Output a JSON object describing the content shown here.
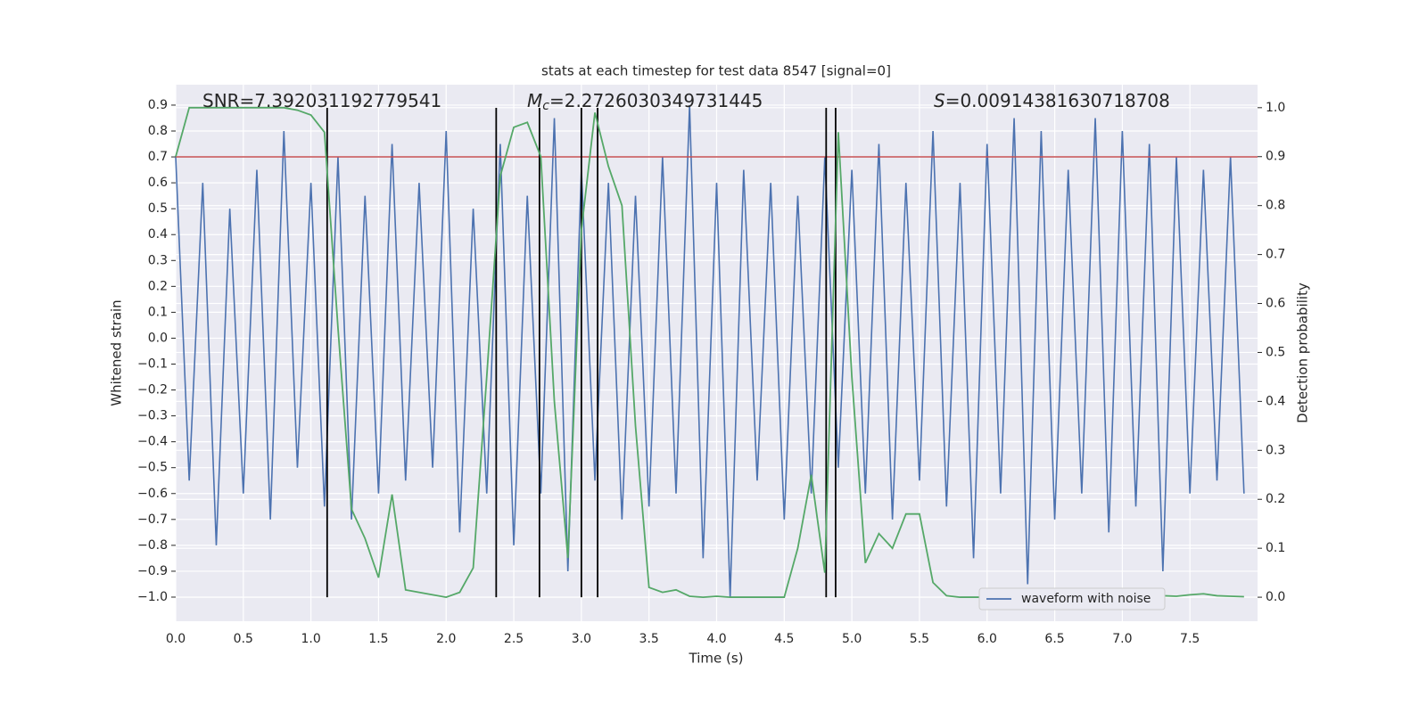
{
  "chart_data": {
    "type": "line",
    "title": "stats at each timestep for test data 8547 [signal=0]",
    "xlabel": "Time (s)",
    "ylabel": "Whitened strain",
    "y2label": "Detection probability",
    "annotations": [
      {
        "text": "SNR=7.392031192779541"
      },
      {
        "symbol": "M",
        "subscript": "c",
        "text": "=2.2726030349731445"
      },
      {
        "symbol": "S",
        "text": "=0.00914381630718708"
      }
    ],
    "x": [
      0,
      0.1,
      0.2,
      0.3,
      0.4,
      0.5,
      0.6,
      0.7,
      0.8,
      0.9,
      1,
      1.1,
      1.2,
      1.3,
      1.4,
      1.5,
      1.6,
      1.7,
      1.8,
      1.9,
      2,
      2.1,
      2.2,
      2.3,
      2.4,
      2.5,
      2.6,
      2.7,
      2.8,
      2.9,
      3,
      3.1,
      3.2,
      3.3,
      3.4,
      3.5,
      3.6,
      3.7,
      3.8,
      3.9,
      4,
      4.1,
      4.2,
      4.3,
      4.4,
      4.5,
      4.6,
      4.7,
      4.8,
      4.9,
      5,
      5.1,
      5.2,
      5.3,
      5.4,
      5.5,
      5.6,
      5.7,
      5.8,
      5.9,
      6,
      6.1,
      6.2,
      6.3,
      6.4,
      6.5,
      6.6,
      6.7,
      6.8,
      6.9,
      7,
      7.1,
      7.2,
      7.3,
      7.4,
      7.5,
      7.6,
      7.7,
      7.8,
      7.9
    ],
    "series": [
      {
        "name": "waveform with noise",
        "color": "#4c72b0",
        "axis": "y",
        "values": [
          0.7,
          -0.55,
          0.6,
          -0.8,
          0.5,
          -0.6,
          0.65,
          -0.7,
          0.8,
          -0.5,
          0.6,
          -0.65,
          0.7,
          -0.7,
          0.55,
          -0.6,
          0.75,
          -0.55,
          0.6,
          -0.5,
          0.8,
          -0.75,
          0.5,
          -0.6,
          0.75,
          -0.8,
          0.55,
          -0.6,
          0.85,
          -0.9,
          0.65,
          -0.55,
          0.6,
          -0.7,
          0.55,
          -0.65,
          0.7,
          -0.6,
          0.9,
          -0.85,
          0.6,
          -1.0,
          0.65,
          -0.55,
          0.6,
          -0.7,
          0.55,
          -0.6,
          0.7,
          -0.5,
          0.65,
          -0.6,
          0.75,
          -0.7,
          0.6,
          -0.55,
          0.8,
          -0.65,
          0.6,
          -0.85,
          0.75,
          -0.6,
          0.85,
          -0.95,
          0.8,
          -0.7,
          0.65,
          -0.6,
          0.85,
          -0.75,
          0.8,
          -0.65,
          0.75,
          -0.9,
          0.7,
          -0.6,
          0.65,
          -0.55,
          0.7,
          -0.6
        ]
      },
      {
        "color": "#55a868",
        "axis": "y2",
        "values": [
          0.9,
          1.0,
          1.0,
          1.0,
          1.0,
          1.0,
          1.0,
          1.0,
          1.0,
          0.995,
          0.985,
          0.95,
          0.55,
          0.18,
          0.12,
          0.04,
          0.21,
          0.015,
          0.01,
          0.005,
          0.0,
          0.01,
          0.06,
          0.45,
          0.86,
          0.96,
          0.97,
          0.9,
          0.4,
          0.08,
          0.75,
          0.99,
          0.88,
          0.8,
          0.35,
          0.02,
          0.01,
          0.015,
          0.002,
          0.0,
          0.002,
          0.0,
          0.0,
          0.0,
          0.0,
          0.0,
          0.1,
          0.25,
          0.05,
          0.95,
          0.45,
          0.07,
          0.13,
          0.1,
          0.17,
          0.17,
          0.03,
          0.003,
          0.0,
          0.0,
          0.0,
          0.0,
          0.0,
          0.002,
          0.005,
          0.004,
          0.008,
          0.013,
          0.003,
          0.002,
          0.002,
          0.001,
          0.008,
          0.003,
          0.002,
          0.005,
          0.007,
          0.003,
          0.002,
          0.001
        ]
      }
    ],
    "hlines": [
      {
        "y": 0.7,
        "color": "#c44e52"
      }
    ],
    "vlines": {
      "x": [
        1.12,
        2.37,
        2.69,
        3.0,
        3.12,
        4.81,
        4.88
      ],
      "color": "#000000"
    },
    "xlim": [
      0,
      8.0
    ],
    "xticks": [
      {
        "value": 0,
        "label": "0.0"
      },
      {
        "value": 0.5,
        "label": "0.5"
      },
      {
        "value": 1,
        "label": "1.0"
      },
      {
        "value": 1.5,
        "label": "1.5"
      },
      {
        "value": 2,
        "label": "2.0"
      },
      {
        "value": 2.5,
        "label": "2.5"
      },
      {
        "value": 3,
        "label": "3.0"
      },
      {
        "value": 3.5,
        "label": "3.5"
      },
      {
        "value": 4,
        "label": "4.0"
      },
      {
        "value": 4.5,
        "label": "4.5"
      },
      {
        "value": 5,
        "label": "5.0"
      },
      {
        "value": 5.5,
        "label": "5.5"
      },
      {
        "value": 6,
        "label": "6.0"
      },
      {
        "value": 6.5,
        "label": "6.5"
      },
      {
        "value": 7,
        "label": "7.0"
      },
      {
        "value": 7.5,
        "label": "7.5"
      }
    ],
    "ylim": [
      -1.093,
      0.979
    ],
    "yticks": [
      {
        "value": 0.9,
        "label": "0.9"
      },
      {
        "value": 0.8,
        "label": "0.8"
      },
      {
        "value": 0.7,
        "label": "0.7"
      },
      {
        "value": 0.6,
        "label": "0.6"
      },
      {
        "value": 0.5,
        "label": "0.5"
      },
      {
        "value": 0.4,
        "label": "0.4"
      },
      {
        "value": 0.3,
        "label": "0.3"
      },
      {
        "value": 0.2,
        "label": "0.2"
      },
      {
        "value": 0.1,
        "label": "0.1"
      },
      {
        "value": 0,
        "label": "0.0"
      },
      {
        "value": -0.1,
        "label": "−0.1"
      },
      {
        "value": -0.2,
        "label": "−0.2"
      },
      {
        "value": -0.3,
        "label": "−0.3"
      },
      {
        "value": -0.4,
        "label": "−0.4"
      },
      {
        "value": -0.5,
        "label": "−0.5"
      },
      {
        "value": -0.6,
        "label": "−0.6"
      },
      {
        "value": -0.7,
        "label": "−0.7"
      },
      {
        "value": -0.8,
        "label": "−0.8"
      },
      {
        "value": -0.9,
        "label": "−0.9"
      },
      {
        "value": -1.0,
        "label": "−1.0"
      }
    ],
    "y2lim": [
      -0.049,
      1.047
    ],
    "y2ticks": [
      {
        "value": 0,
        "label": "0.0"
      },
      {
        "value": 0.1,
        "label": "0.1"
      },
      {
        "value": 0.2,
        "label": "0.2"
      },
      {
        "value": 0.3,
        "label": "0.3"
      },
      {
        "value": 0.4,
        "label": "0.4"
      },
      {
        "value": 0.5,
        "label": "0.5"
      },
      {
        "value": 0.6,
        "label": "0.6"
      },
      {
        "value": 0.7,
        "label": "0.7"
      },
      {
        "value": 0.8,
        "label": "0.8"
      },
      {
        "value": 0.9,
        "label": "0.9"
      },
      {
        "value": 1.0,
        "label": "1.0"
      }
    ],
    "grid": true,
    "legend": "lower right"
  }
}
